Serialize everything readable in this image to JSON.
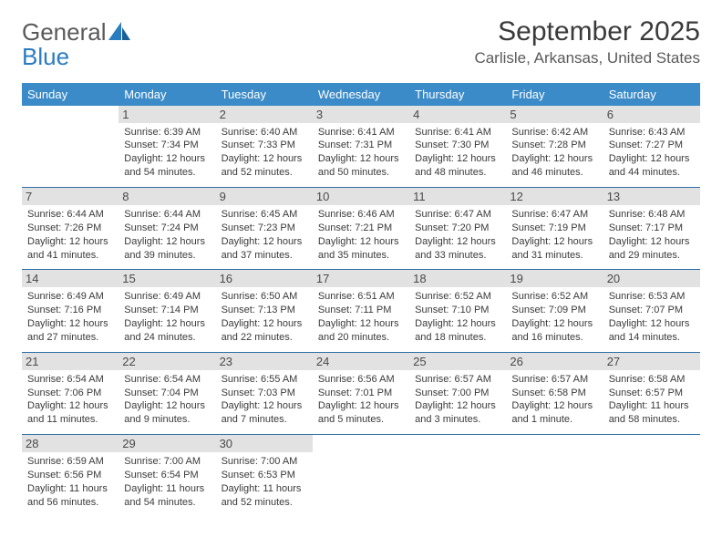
{
  "logo": {
    "line1": "General",
    "line2": "Blue"
  },
  "title": "September 2025",
  "location": "Carlisle, Arkansas, United States",
  "colors": {
    "header_bg": "#3b8bc8",
    "header_fg": "#ffffff",
    "daynum_bg": "#e2e2e2",
    "row_border": "#2f6fa5",
    "text": "#3a3a3a",
    "logo_blue": "#2a7cc0"
  },
  "day_headers": [
    "Sunday",
    "Monday",
    "Tuesday",
    "Wednesday",
    "Thursday",
    "Friday",
    "Saturday"
  ],
  "weeks": [
    [
      null,
      {
        "n": "1",
        "sunrise": "Sunrise: 6:39 AM",
        "sunset": "Sunset: 7:34 PM",
        "daylight": "Daylight: 12 hours and 54 minutes."
      },
      {
        "n": "2",
        "sunrise": "Sunrise: 6:40 AM",
        "sunset": "Sunset: 7:33 PM",
        "daylight": "Daylight: 12 hours and 52 minutes."
      },
      {
        "n": "3",
        "sunrise": "Sunrise: 6:41 AM",
        "sunset": "Sunset: 7:31 PM",
        "daylight": "Daylight: 12 hours and 50 minutes."
      },
      {
        "n": "4",
        "sunrise": "Sunrise: 6:41 AM",
        "sunset": "Sunset: 7:30 PM",
        "daylight": "Daylight: 12 hours and 48 minutes."
      },
      {
        "n": "5",
        "sunrise": "Sunrise: 6:42 AM",
        "sunset": "Sunset: 7:28 PM",
        "daylight": "Daylight: 12 hours and 46 minutes."
      },
      {
        "n": "6",
        "sunrise": "Sunrise: 6:43 AM",
        "sunset": "Sunset: 7:27 PM",
        "daylight": "Daylight: 12 hours and 44 minutes."
      }
    ],
    [
      {
        "n": "7",
        "sunrise": "Sunrise: 6:44 AM",
        "sunset": "Sunset: 7:26 PM",
        "daylight": "Daylight: 12 hours and 41 minutes."
      },
      {
        "n": "8",
        "sunrise": "Sunrise: 6:44 AM",
        "sunset": "Sunset: 7:24 PM",
        "daylight": "Daylight: 12 hours and 39 minutes."
      },
      {
        "n": "9",
        "sunrise": "Sunrise: 6:45 AM",
        "sunset": "Sunset: 7:23 PM",
        "daylight": "Daylight: 12 hours and 37 minutes."
      },
      {
        "n": "10",
        "sunrise": "Sunrise: 6:46 AM",
        "sunset": "Sunset: 7:21 PM",
        "daylight": "Daylight: 12 hours and 35 minutes."
      },
      {
        "n": "11",
        "sunrise": "Sunrise: 6:47 AM",
        "sunset": "Sunset: 7:20 PM",
        "daylight": "Daylight: 12 hours and 33 minutes."
      },
      {
        "n": "12",
        "sunrise": "Sunrise: 6:47 AM",
        "sunset": "Sunset: 7:19 PM",
        "daylight": "Daylight: 12 hours and 31 minutes."
      },
      {
        "n": "13",
        "sunrise": "Sunrise: 6:48 AM",
        "sunset": "Sunset: 7:17 PM",
        "daylight": "Daylight: 12 hours and 29 minutes."
      }
    ],
    [
      {
        "n": "14",
        "sunrise": "Sunrise: 6:49 AM",
        "sunset": "Sunset: 7:16 PM",
        "daylight": "Daylight: 12 hours and 27 minutes."
      },
      {
        "n": "15",
        "sunrise": "Sunrise: 6:49 AM",
        "sunset": "Sunset: 7:14 PM",
        "daylight": "Daylight: 12 hours and 24 minutes."
      },
      {
        "n": "16",
        "sunrise": "Sunrise: 6:50 AM",
        "sunset": "Sunset: 7:13 PM",
        "daylight": "Daylight: 12 hours and 22 minutes."
      },
      {
        "n": "17",
        "sunrise": "Sunrise: 6:51 AM",
        "sunset": "Sunset: 7:11 PM",
        "daylight": "Daylight: 12 hours and 20 minutes."
      },
      {
        "n": "18",
        "sunrise": "Sunrise: 6:52 AM",
        "sunset": "Sunset: 7:10 PM",
        "daylight": "Daylight: 12 hours and 18 minutes."
      },
      {
        "n": "19",
        "sunrise": "Sunrise: 6:52 AM",
        "sunset": "Sunset: 7:09 PM",
        "daylight": "Daylight: 12 hours and 16 minutes."
      },
      {
        "n": "20",
        "sunrise": "Sunrise: 6:53 AM",
        "sunset": "Sunset: 7:07 PM",
        "daylight": "Daylight: 12 hours and 14 minutes."
      }
    ],
    [
      {
        "n": "21",
        "sunrise": "Sunrise: 6:54 AM",
        "sunset": "Sunset: 7:06 PM",
        "daylight": "Daylight: 12 hours and 11 minutes."
      },
      {
        "n": "22",
        "sunrise": "Sunrise: 6:54 AM",
        "sunset": "Sunset: 7:04 PM",
        "daylight": "Daylight: 12 hours and 9 minutes."
      },
      {
        "n": "23",
        "sunrise": "Sunrise: 6:55 AM",
        "sunset": "Sunset: 7:03 PM",
        "daylight": "Daylight: 12 hours and 7 minutes."
      },
      {
        "n": "24",
        "sunrise": "Sunrise: 6:56 AM",
        "sunset": "Sunset: 7:01 PM",
        "daylight": "Daylight: 12 hours and 5 minutes."
      },
      {
        "n": "25",
        "sunrise": "Sunrise: 6:57 AM",
        "sunset": "Sunset: 7:00 PM",
        "daylight": "Daylight: 12 hours and 3 minutes."
      },
      {
        "n": "26",
        "sunrise": "Sunrise: 6:57 AM",
        "sunset": "Sunset: 6:58 PM",
        "daylight": "Daylight: 12 hours and 1 minute."
      },
      {
        "n": "27",
        "sunrise": "Sunrise: 6:58 AM",
        "sunset": "Sunset: 6:57 PM",
        "daylight": "Daylight: 11 hours and 58 minutes."
      }
    ],
    [
      {
        "n": "28",
        "sunrise": "Sunrise: 6:59 AM",
        "sunset": "Sunset: 6:56 PM",
        "daylight": "Daylight: 11 hours and 56 minutes."
      },
      {
        "n": "29",
        "sunrise": "Sunrise: 7:00 AM",
        "sunset": "Sunset: 6:54 PM",
        "daylight": "Daylight: 11 hours and 54 minutes."
      },
      {
        "n": "30",
        "sunrise": "Sunrise: 7:00 AM",
        "sunset": "Sunset: 6:53 PM",
        "daylight": "Daylight: 11 hours and 52 minutes."
      },
      null,
      null,
      null,
      null
    ]
  ]
}
